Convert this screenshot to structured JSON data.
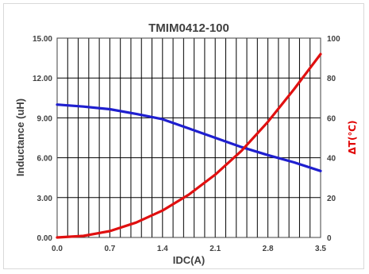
{
  "chart_data": {
    "type": "line",
    "title": "TMIM0412-100",
    "xlabel": "IDC(A)",
    "ylabel": "Inductance  (uH)",
    "y2label": "ΔT(℃)",
    "xlim": [
      0,
      3.5
    ],
    "ylim": [
      0,
      15
    ],
    "y2lim": [
      0,
      100
    ],
    "x_ticks": [
      "0.0",
      "0.7",
      "1.4",
      "2.1",
      "2.8",
      "3.5"
    ],
    "y_ticks": [
      "0.00",
      "3.00",
      "6.00",
      "9.00",
      "12.00",
      "15.00"
    ],
    "y2_ticks": [
      "0",
      "20",
      "40",
      "60",
      "80",
      "100"
    ],
    "grid": true,
    "series": [
      {
        "axis": "left",
        "color": "#1f1fcf",
        "x": [
          0,
          0.35,
          0.7,
          1.05,
          1.4,
          1.75,
          2.1,
          2.45,
          2.8,
          3.15,
          3.5
        ],
        "values": [
          10.0,
          9.85,
          9.65,
          9.3,
          8.9,
          8.2,
          7.5,
          6.8,
          6.2,
          5.65,
          5.0
        ]
      },
      {
        "axis": "right",
        "color": "#e01010",
        "x": [
          0,
          0.35,
          0.7,
          1.05,
          1.4,
          1.75,
          2.1,
          2.45,
          2.8,
          3.15,
          3.5
        ],
        "values": [
          0,
          0.8,
          3.2,
          7.5,
          13.5,
          21.5,
          31.5,
          43.5,
          58.0,
          74.5,
          92.0
        ]
      }
    ]
  }
}
